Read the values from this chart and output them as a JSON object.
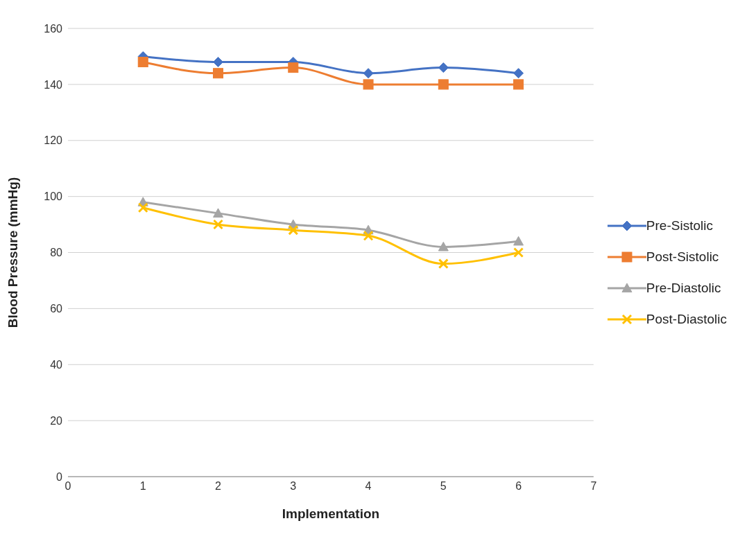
{
  "chart_data": {
    "type": "line",
    "xlabel": "Implementation",
    "ylabel": "Blood Pressure (mmHg)",
    "x": [
      1,
      2,
      3,
      4,
      5,
      6
    ],
    "series": [
      {
        "name": "Pre-Sistolic",
        "color": "#4472c4",
        "marker": "diamond",
        "values": [
          150,
          148,
          148,
          144,
          146,
          144
        ]
      },
      {
        "name": "Post-Sistolic",
        "color": "#ed7d31",
        "marker": "square",
        "values": [
          148,
          144,
          146,
          140,
          140,
          140
        ]
      },
      {
        "name": "Pre-Diastolic",
        "color": "#a5a5a5",
        "marker": "triangle",
        "values": [
          98,
          94,
          90,
          88,
          82,
          84
        ]
      },
      {
        "name": "Post-Diastolic",
        "color": "#ffc000",
        "marker": "cross",
        "values": [
          96,
          90,
          88,
          86,
          76,
          80
        ]
      }
    ],
    "xlim": [
      0,
      7
    ],
    "xticks": [
      0,
      1,
      2,
      3,
      4,
      5,
      6,
      7
    ],
    "ylim": [
      0,
      160
    ],
    "yticks": [
      0,
      20,
      40,
      60,
      80,
      100,
      120,
      140,
      160
    ],
    "grid": "y",
    "legend": "right"
  }
}
